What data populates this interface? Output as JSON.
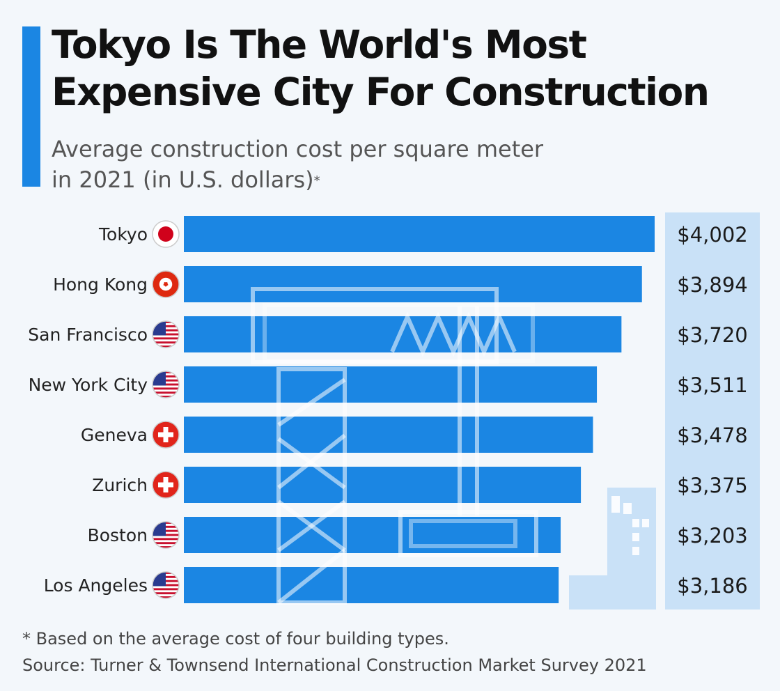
{
  "header": {
    "title_line1": "Tokyo Is The World's Most",
    "title_line2": "Expensive City For Construction",
    "subtitle_line1": "Average construction cost per square meter",
    "subtitle_line2": "in 2021 (in U.S. dollars)",
    "subtitle_mark": "*"
  },
  "colors": {
    "accent": "#1b86e3",
    "bar": "#1b86e3",
    "value_panel": "#c9e1f7",
    "background": "#f3f7fb"
  },
  "chart_data": {
    "type": "bar",
    "orientation": "horizontal",
    "categories": [
      "Tokyo",
      "Hong Kong",
      "San Francisco",
      "New York City",
      "Geneva",
      "Zurich",
      "Boston",
      "Los Angeles"
    ],
    "values": [
      4002,
      3894,
      3720,
      3511,
      3478,
      3375,
      3203,
      3186
    ],
    "value_labels": [
      "$4,002",
      "$3,894",
      "$3,720",
      "$3,511",
      "$3,478",
      "$3,375",
      "$3,203",
      "$3,186"
    ],
    "flags": [
      "japan-flag-icon",
      "hong-kong-flag-icon",
      "us-flag-icon",
      "us-flag-icon",
      "swiss-flag-icon",
      "swiss-flag-icon",
      "us-flag-icon",
      "us-flag-icon"
    ],
    "xlim": [
      0,
      4002
    ],
    "grid": false,
    "title": "Tokyo Is The World's Most Expensive City For Construction",
    "xlabel": "",
    "ylabel": ""
  },
  "footer": {
    "note": "* Based on the average cost of four building types.",
    "source": "Source: Turner & Townsend International Construction Market Survey 2021"
  }
}
